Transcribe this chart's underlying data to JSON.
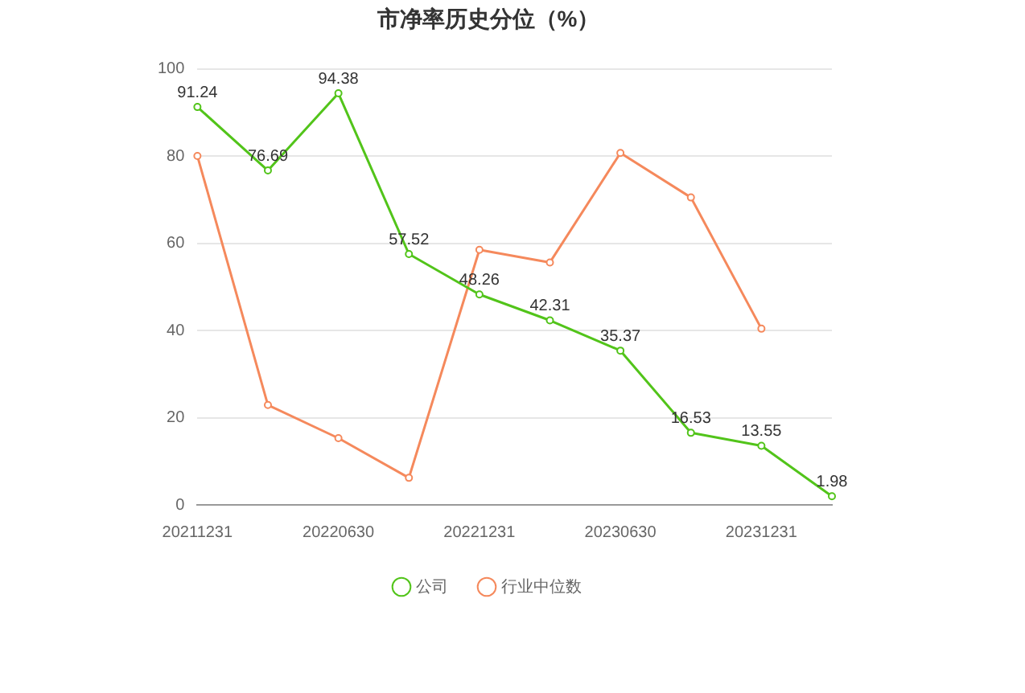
{
  "chart_data": {
    "type": "line",
    "title": "市净率历史分位（%）",
    "categories": [
      "20211231",
      null,
      "20220630",
      null,
      "20221231",
      null,
      "20230630",
      null,
      "20231231",
      null
    ],
    "series": [
      {
        "name": "公司",
        "color": "#52c41a",
        "values": [
          91.24,
          76.69,
          94.38,
          57.52,
          48.26,
          42.31,
          35.37,
          16.53,
          13.55,
          1.98
        ],
        "value_labels": [
          "91.24",
          "76.69",
          "94.38",
          "57.52",
          "48.26",
          "42.31",
          "35.37",
          "16.53",
          "13.55",
          "1.98"
        ]
      },
      {
        "name": "行业中位数",
        "color": "#f5895c",
        "values": [
          80,
          22.9,
          15.3,
          6.2,
          58.5,
          55.6,
          80.7,
          70.5,
          40.4,
          null
        ]
      }
    ],
    "ylim": [
      0,
      100
    ],
    "yticks": [
      0,
      20,
      40,
      60,
      80,
      100
    ],
    "grid": "y",
    "legend": "bottom",
    "marker": "circle",
    "line_style": "solid"
  }
}
